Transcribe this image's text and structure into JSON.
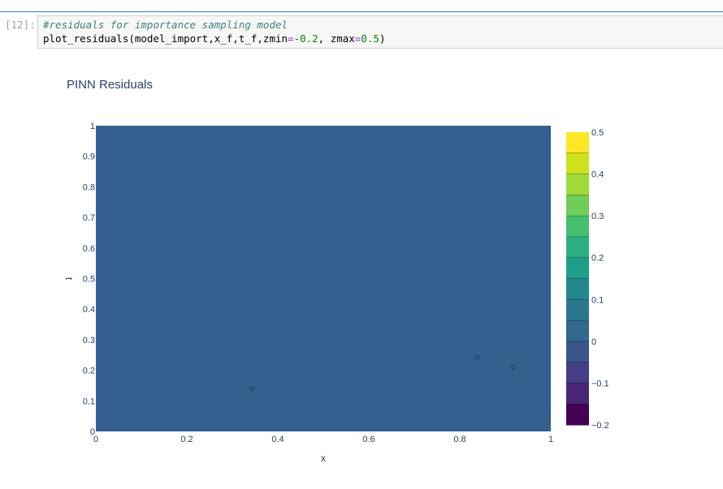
{
  "cell": {
    "prompt": "[12]:",
    "comment": "#residuals for importance sampling model",
    "call_prefix": "plot_residuals(model_import,x_f,t_f,zmin",
    "eq1": "=",
    "zmin_value": "-0.2",
    "sep": ", zmax",
    "eq2": "=",
    "zmax_value": "0.5",
    "call_suffix": ")"
  },
  "chart_data": {
    "type": "contour",
    "title": "PINN Residuals",
    "xlabel": "x",
    "ylabel": "t",
    "xlim": [
      0,
      1
    ],
    "ylim": [
      0,
      1
    ],
    "x_ticks": [
      "0",
      "0.2",
      "0.4",
      "0.6",
      "0.8",
      "1"
    ],
    "y_ticks": [
      "0",
      "0.1",
      "0.2",
      "0.3",
      "0.4",
      "0.5",
      "0.6",
      "0.7",
      "0.8",
      "0.9",
      "1"
    ],
    "fill_color": "#345f8e",
    "small_contours": [
      {
        "x": 0.343,
        "t": 0.14
      },
      {
        "x": 0.838,
        "t": 0.243
      },
      {
        "x": 0.918,
        "t": 0.21
      }
    ],
    "colorbar": {
      "zmin": -0.2,
      "zmax": 0.5,
      "ticks": [
        "0.5",
        "0.4",
        "0.3",
        "0.2",
        "0.1",
        "0",
        "−0.1",
        "−0.2"
      ],
      "levels": [
        "#fde725",
        "#cde11d",
        "#a0da39",
        "#6ece58",
        "#44bf70",
        "#2bb07f",
        "#1f9e89",
        "#23888e",
        "#2a788e",
        "#31688e",
        "#39568c",
        "#433e85",
        "#482576",
        "#440154"
      ]
    }
  }
}
